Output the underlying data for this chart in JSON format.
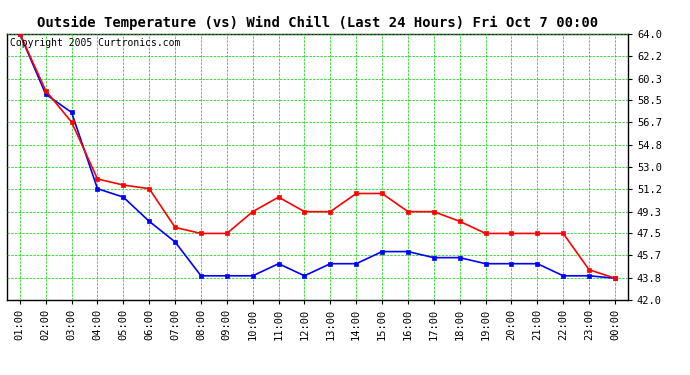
{
  "title": "Outside Temperature (vs) Wind Chill (Last 24 Hours) Fri Oct 7 00:00",
  "copyright": "Copyright 2005 Curtronics.com",
  "x_labels": [
    "01:00",
    "02:00",
    "03:00",
    "04:00",
    "05:00",
    "06:00",
    "07:00",
    "08:00",
    "09:00",
    "10:00",
    "11:00",
    "12:00",
    "13:00",
    "14:00",
    "15:00",
    "16:00",
    "17:00",
    "18:00",
    "19:00",
    "20:00",
    "21:00",
    "22:00",
    "23:00",
    "00:00"
  ],
  "outside_temp": [
    64.0,
    59.0,
    57.5,
    51.2,
    50.5,
    48.5,
    46.8,
    44.0,
    44.0,
    44.0,
    45.0,
    44.0,
    45.0,
    45.0,
    46.0,
    46.0,
    45.5,
    45.5,
    45.0,
    45.0,
    45.0,
    44.0,
    44.0,
    43.8
  ],
  "wind_chill": [
    64.0,
    59.3,
    56.7,
    52.0,
    51.5,
    51.2,
    48.0,
    47.5,
    47.5,
    49.3,
    50.5,
    49.3,
    49.3,
    50.8,
    50.8,
    49.3,
    49.3,
    48.5,
    47.5,
    47.5,
    47.5,
    47.5,
    44.5,
    43.8
  ],
  "bg_color": "#ffffff",
  "plot_bg_color": "#ffffff",
  "grid_color": "#00cc00",
  "outside_temp_color": "#0000ff",
  "wind_chill_color": "#ff0000",
  "yticks": [
    42.0,
    43.8,
    45.7,
    47.5,
    49.3,
    51.2,
    53.0,
    54.8,
    56.7,
    58.5,
    60.3,
    62.2,
    64.0
  ],
  "ymin": 42.0,
  "ymax": 64.0,
  "title_fontsize": 10,
  "copyright_fontsize": 7,
  "tick_fontsize": 7.5,
  "marker": "s",
  "marker_size": 3,
  "line_width": 1.2
}
